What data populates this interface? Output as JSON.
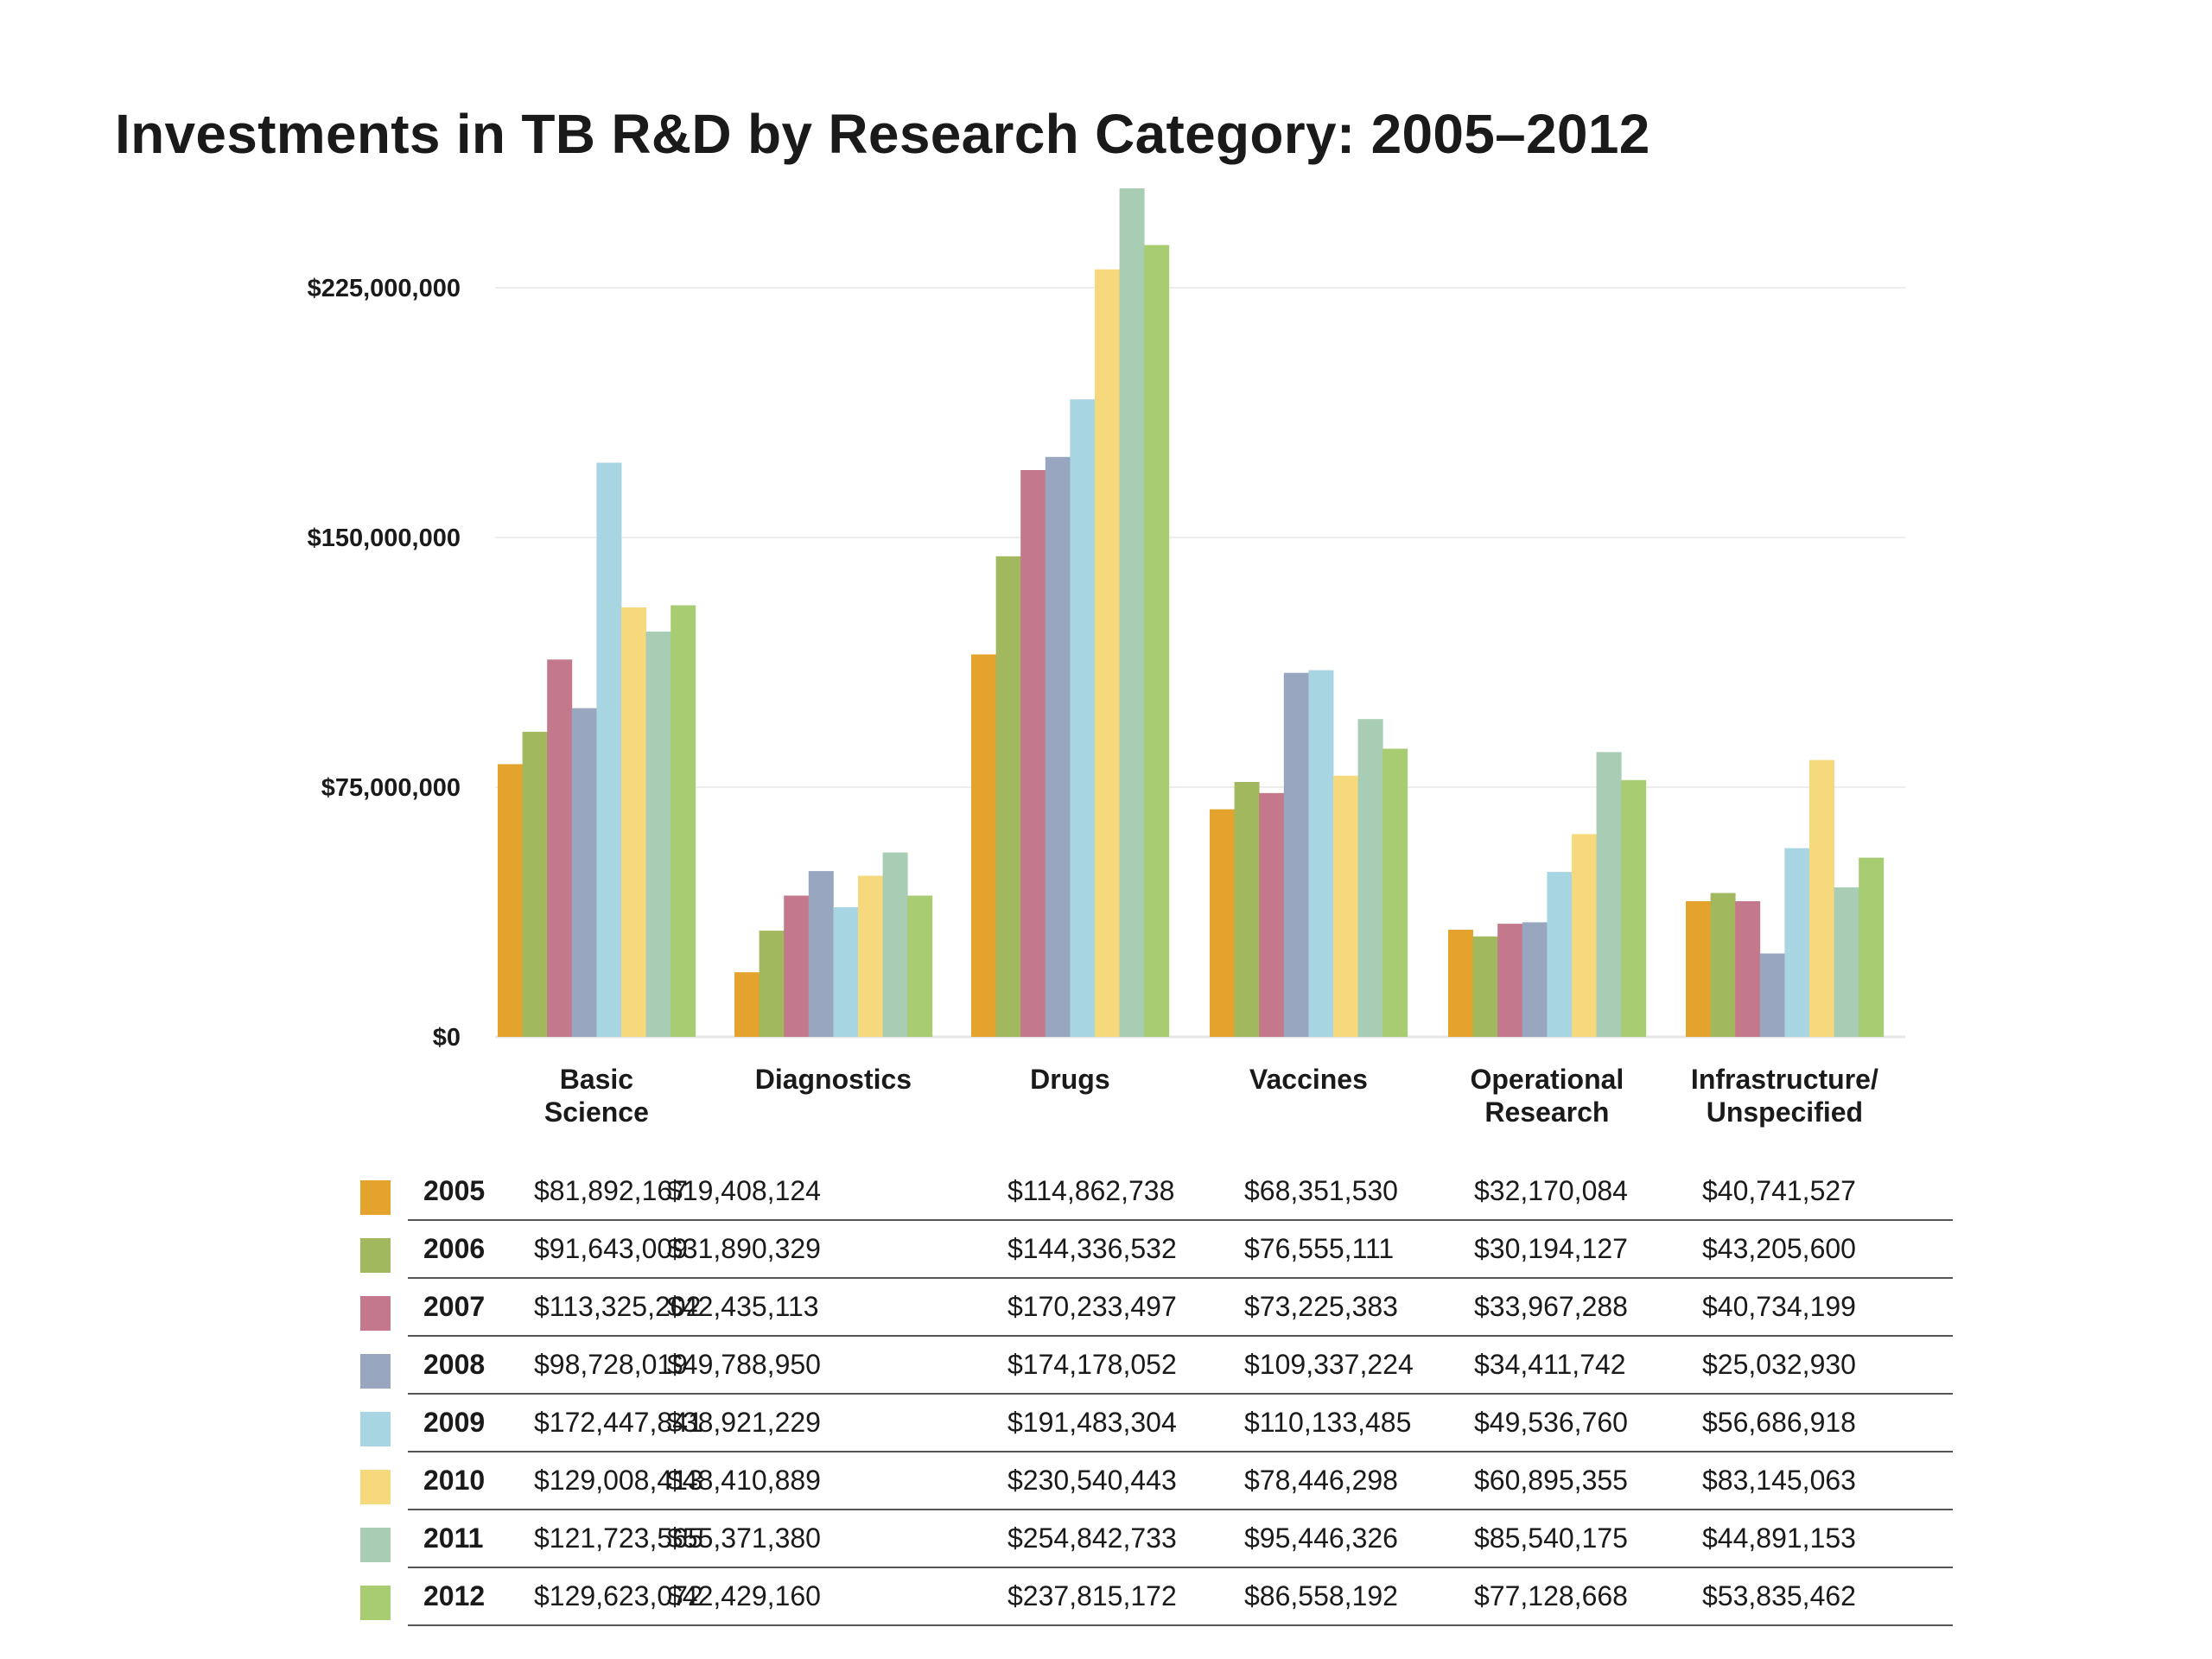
{
  "chart_data": {
    "type": "bar",
    "title": "Investments in TB R&D by Research Category: 2005–2012",
    "xlabel": "",
    "ylabel": "",
    "ylim": [
      0,
      255000000
    ],
    "yticks": [
      0,
      75000000,
      150000000,
      225000000
    ],
    "ytick_labels": [
      "$0",
      "$75,000,000",
      "$150,000,000",
      "$225,000,000"
    ],
    "grid": true,
    "legend": "table-below",
    "categories": [
      [
        "Basic",
        "Science"
      ],
      [
        "Diagnostics"
      ],
      [
        "Drugs"
      ],
      [
        "Vaccines"
      ],
      [
        "Operational",
        "Research"
      ],
      [
        "Infrastructure/",
        "Unspecified"
      ]
    ],
    "series": [
      {
        "name": "2005",
        "color": "#e3a32c",
        "values": [
          81892167,
          19408124,
          114862738,
          68351530,
          32170084,
          40741527
        ],
        "labels": [
          "$81,892,167",
          "$19,408,124",
          "$114,862,738",
          "$68,351,530",
          "$32,170,084",
          "$40,741,527"
        ]
      },
      {
        "name": "2006",
        "color": "#a2b85e",
        "values": [
          91643009,
          31890329,
          144336532,
          76555111,
          30194127,
          43205600
        ],
        "labels": [
          "$91,643,009",
          "$31,890,329",
          "$144,336,532",
          "$76,555,111",
          "$30,194,127",
          "$43,205,600"
        ]
      },
      {
        "name": "2007",
        "color": "#c4788c",
        "values": [
          113325202,
          42435113,
          170233497,
          73225383,
          33967288,
          40734199
        ],
        "labels": [
          "$113,325,202",
          "$42,435,113",
          "$170,233,497",
          "$73,225,383",
          "$33,967,288",
          "$40,734,199"
        ]
      },
      {
        "name": "2008",
        "color": "#98a6bf",
        "values": [
          98728019,
          49788950,
          174178052,
          109337224,
          34411742,
          25032930
        ],
        "labels": [
          "$98,728,019",
          "$49,788,950",
          "$174,178,052",
          "$109,337,224",
          "$34,411,742",
          "$25,032,930"
        ]
      },
      {
        "name": "2009",
        "color": "#a8d5e2",
        "values": [
          172447841,
          38921229,
          191483304,
          110133485,
          49536760,
          56686918
        ],
        "labels": [
          "$172,447,841",
          "$38,921,229",
          "$191,483,304",
          "$110,133,485",
          "$49,536,760",
          "$56,686,918"
        ]
      },
      {
        "name": "2010",
        "color": "#f5d97c",
        "values": [
          129008413,
          48410889,
          230540443,
          78446298,
          60895355,
          83145063
        ],
        "labels": [
          "$129,008,413",
          "$48,410,889",
          "$230,540,443",
          "$78,446,298",
          "$60,895,355",
          "$83,145,063"
        ]
      },
      {
        "name": "2011",
        "color": "#a9ccb4",
        "values": [
          121723565,
          55371380,
          254842733,
          95446326,
          85540175,
          44891153
        ],
        "labels": [
          "$121,723,565",
          "$55,371,380",
          "$254,842,733",
          "$95,446,326",
          "$85,540,175",
          "$44,891,153"
        ]
      },
      {
        "name": "2012",
        "color": "#a8cc72",
        "values": [
          129623072,
          42429160,
          237815172,
          86558192,
          77128668,
          53835462
        ],
        "labels": [
          "$129,623,072",
          "$42,429,160",
          "$237,815,172",
          "$86,558,192",
          "$77,128,668",
          "$53,835,462"
        ]
      }
    ]
  }
}
